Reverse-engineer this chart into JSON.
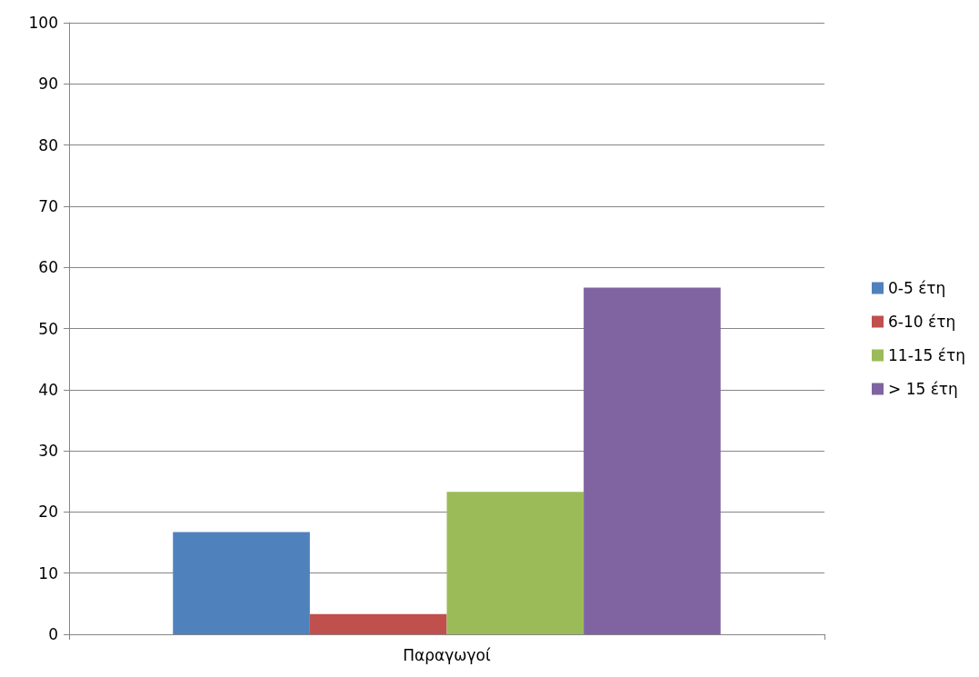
{
  "chart_data": {
    "type": "bar",
    "categories": [
      "Παραγωγοί"
    ],
    "series": [
      {
        "name": "0-5 έτη",
        "color": "#4f81bd",
        "values": [
          16.7
        ]
      },
      {
        "name": "6-10 έτη",
        "color": "#c0504d",
        "values": [
          3.3
        ]
      },
      {
        "name": "11-15 έτη",
        "color": "#9bbb59",
        "values": [
          23.3
        ]
      },
      {
        "name": "> 15 έτη",
        "color": "#8064a2",
        "values": [
          56.7
        ]
      }
    ],
    "ylim": [
      0,
      100
    ],
    "yticks": [
      0,
      10,
      20,
      30,
      40,
      50,
      60,
      70,
      80,
      90,
      100
    ],
    "grid": "y",
    "legend": "right"
  }
}
